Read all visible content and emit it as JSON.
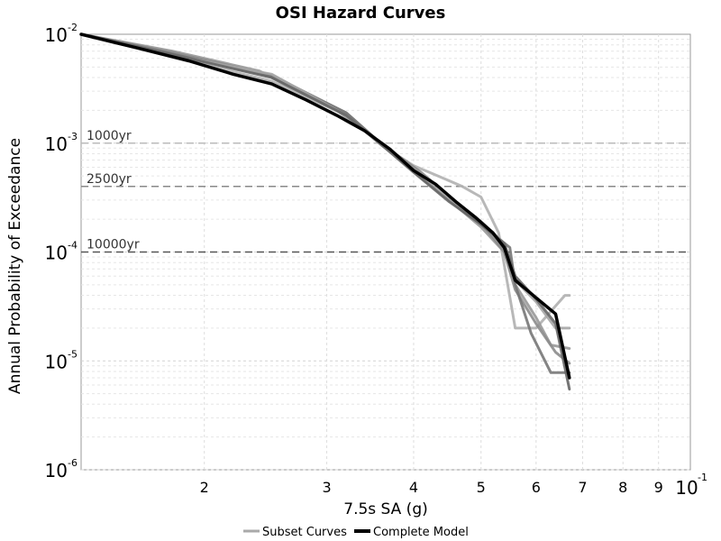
{
  "chart_data": {
    "type": "line",
    "title": "OSI Hazard Curves",
    "xlabel": "7.5s SA (g)",
    "ylabel": "Annual Probability of Exceedance",
    "x_scale": "log",
    "y_scale": "log",
    "xlim": [
      0.0133,
      0.1
    ],
    "ylim": [
      1e-06,
      0.01
    ],
    "x_tick_labels": [
      {
        "value": 0.02,
        "label": "2"
      },
      {
        "value": 0.03,
        "label": "3"
      },
      {
        "value": 0.04,
        "label": "4"
      },
      {
        "value": 0.05,
        "label": "5"
      },
      {
        "value": 0.06,
        "label": "6"
      },
      {
        "value": 0.07,
        "label": "7"
      },
      {
        "value": 0.08,
        "label": "8"
      },
      {
        "value": 0.09,
        "label": "9"
      },
      {
        "value": 0.1,
        "label": "10",
        "exponent": "-1"
      }
    ],
    "y_tick_labels": [
      {
        "value": 0.01,
        "base": "10",
        "exponent": "-2"
      },
      {
        "value": 0.001,
        "base": "10",
        "exponent": "-3"
      },
      {
        "value": 0.0001,
        "base": "10",
        "exponent": "-4"
      },
      {
        "value": 1e-05,
        "base": "10",
        "exponent": "-5"
      },
      {
        "value": 1e-06,
        "base": "10",
        "exponent": "-6"
      }
    ],
    "grid": true,
    "legend_position": "bottom",
    "reference_lines": [
      {
        "label": "1000yr",
        "y": 0.001,
        "color": "#bbbbbb"
      },
      {
        "label": "2500yr",
        "y": 0.0004,
        "color": "#888888"
      },
      {
        "label": "10000yr",
        "y": 0.0001,
        "color": "#555555"
      }
    ],
    "legend": [
      {
        "name": "Subset Curves",
        "color": "#aaaaaa"
      },
      {
        "name": "Complete Model",
        "color": "#000000"
      }
    ],
    "series": [
      {
        "role": "subset",
        "color": "#b0b0b0",
        "points": [
          [
            0.0133,
            0.01
          ],
          [
            0.018,
            0.0062
          ],
          [
            0.025,
            0.0037
          ],
          [
            0.032,
            0.0018
          ],
          [
            0.036,
            0.00095
          ],
          [
            0.04,
            0.00062
          ],
          [
            0.044,
            0.00048
          ],
          [
            0.047,
            0.0004
          ],
          [
            0.05,
            0.00032
          ],
          [
            0.053,
            0.00015
          ],
          [
            0.056,
            2e-05
          ],
          [
            0.06,
            2e-05
          ],
          [
            0.066,
            4e-05
          ],
          [
            0.067,
            4e-05
          ]
        ]
      },
      {
        "role": "subset",
        "color": "#999999",
        "points": [
          [
            0.0133,
            0.01
          ],
          [
            0.018,
            0.007
          ],
          [
            0.024,
            0.0046
          ],
          [
            0.031,
            0.002
          ],
          [
            0.036,
            0.001
          ],
          [
            0.04,
            0.00055
          ],
          [
            0.045,
            0.0003
          ],
          [
            0.05,
            0.00017
          ],
          [
            0.054,
            0.0001
          ],
          [
            0.056,
            5e-05
          ],
          [
            0.06,
            2.5e-05
          ],
          [
            0.063,
            1.4e-05
          ],
          [
            0.067,
            1.3e-05
          ]
        ]
      },
      {
        "role": "subset",
        "color": "#8c8c8c",
        "points": [
          [
            0.0133,
            0.01
          ],
          [
            0.018,
            0.0068
          ],
          [
            0.025,
            0.0042
          ],
          [
            0.032,
            0.0019
          ],
          [
            0.036,
            0.00098
          ],
          [
            0.041,
            0.00054
          ],
          [
            0.046,
            0.00029
          ],
          [
            0.051,
            0.00016
          ],
          [
            0.054,
            0.0001
          ],
          [
            0.056,
            4.5e-05
          ],
          [
            0.06,
            2.2e-05
          ],
          [
            0.064,
            1.2e-05
          ],
          [
            0.067,
            9.5e-06
          ]
        ]
      },
      {
        "role": "subset",
        "color": "#777777",
        "points": [
          [
            0.0133,
            0.01
          ],
          [
            0.018,
            0.0066
          ],
          [
            0.025,
            0.0041
          ],
          [
            0.032,
            0.0019
          ],
          [
            0.036,
            0.00097
          ],
          [
            0.04,
            0.00055
          ],
          [
            0.045,
            0.0003
          ],
          [
            0.05,
            0.00018
          ],
          [
            0.055,
            0.00011
          ],
          [
            0.056,
            5e-05
          ],
          [
            0.059,
            1.8e-05
          ],
          [
            0.063,
            7.8e-06
          ],
          [
            0.067,
            7.8e-06
          ]
        ]
      },
      {
        "role": "subset",
        "color": "#a6a6a6",
        "points": [
          [
            0.0133,
            0.01
          ],
          [
            0.018,
            0.0064
          ],
          [
            0.025,
            0.0043
          ],
          [
            0.032,
            0.0018
          ],
          [
            0.036,
            0.00095
          ],
          [
            0.04,
            0.00057
          ],
          [
            0.045,
            0.0003
          ],
          [
            0.05,
            0.00019
          ],
          [
            0.054,
            0.00012
          ],
          [
            0.056,
            5.5e-05
          ],
          [
            0.06,
            3.5e-05
          ],
          [
            0.064,
            2e-05
          ],
          [
            0.067,
            2e-05
          ]
        ]
      },
      {
        "role": "subset",
        "color": "#666666",
        "points": [
          [
            0.0133,
            0.01
          ],
          [
            0.018,
            0.0065
          ],
          [
            0.025,
            0.004
          ],
          [
            0.032,
            0.0018
          ],
          [
            0.036,
            0.00096
          ],
          [
            0.04,
            0.00054
          ],
          [
            0.045,
            0.00029
          ],
          [
            0.05,
            0.00018
          ],
          [
            0.054,
            0.00012
          ],
          [
            0.056,
            6e-05
          ],
          [
            0.06,
            3.7e-05
          ],
          [
            0.064,
            2.2e-05
          ],
          [
            0.067,
            5.5e-06
          ]
        ]
      },
      {
        "role": "complete",
        "color": "#000000",
        "points": [
          [
            0.0133,
            0.01
          ],
          [
            0.016,
            0.0075
          ],
          [
            0.019,
            0.0057
          ],
          [
            0.022,
            0.0043
          ],
          [
            0.025,
            0.0035
          ],
          [
            0.028,
            0.0025
          ],
          [
            0.031,
            0.0018
          ],
          [
            0.034,
            0.0013
          ],
          [
            0.037,
            0.00088
          ],
          [
            0.04,
            0.00056
          ],
          [
            0.043,
            0.00042
          ],
          [
            0.046,
            0.00029
          ],
          [
            0.049,
            0.00021
          ],
          [
            0.052,
            0.00015
          ],
          [
            0.054,
            0.00011
          ],
          [
            0.056,
            5.5e-05
          ],
          [
            0.06,
            3.8e-05
          ],
          [
            0.064,
            2.7e-05
          ],
          [
            0.067,
            7e-06
          ]
        ]
      }
    ]
  }
}
